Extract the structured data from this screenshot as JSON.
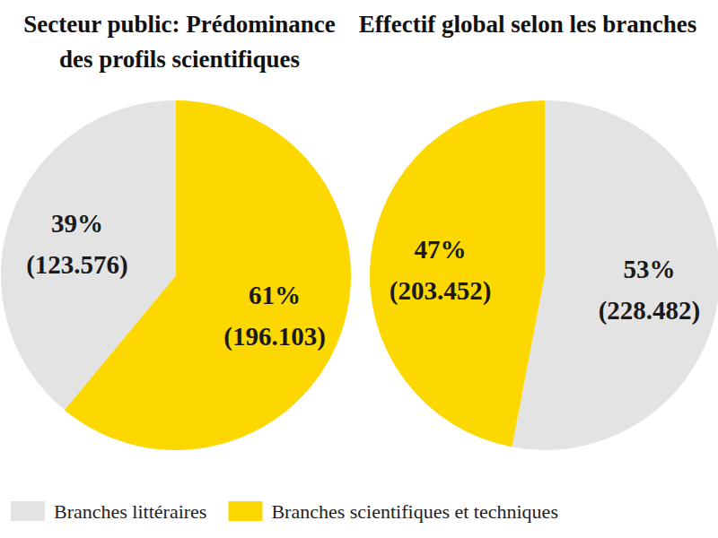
{
  "chart_data": [
    {
      "type": "pie",
      "title": "Secteur public: Prédominance des profils scientifiques",
      "categories": [
        "Branches scientifiques et techniques",
        "Branches littéraires"
      ],
      "values": [
        61,
        39
      ],
      "value_labels": [
        "61%",
        "39%"
      ],
      "counts": [
        196103,
        123576
      ],
      "count_labels": [
        "(196.103)",
        "(123.576)"
      ],
      "colors": [
        "#fcd800",
        "#e3e3e3"
      ],
      "data_labels": true
    },
    {
      "type": "pie",
      "title": "Effectif global selon les branches",
      "categories": [
        "Branches littéraires",
        "Branches scientifiques et techniques"
      ],
      "values": [
        53,
        47
      ],
      "value_labels": [
        "53%",
        "47%"
      ],
      "counts": [
        228482,
        203452
      ],
      "count_labels": [
        "(228.482)",
        "(203.452)"
      ],
      "colors": [
        "#e3e3e3",
        "#fcd800"
      ],
      "data_labels": true,
      "legend": "bottom"
    }
  ]
}
